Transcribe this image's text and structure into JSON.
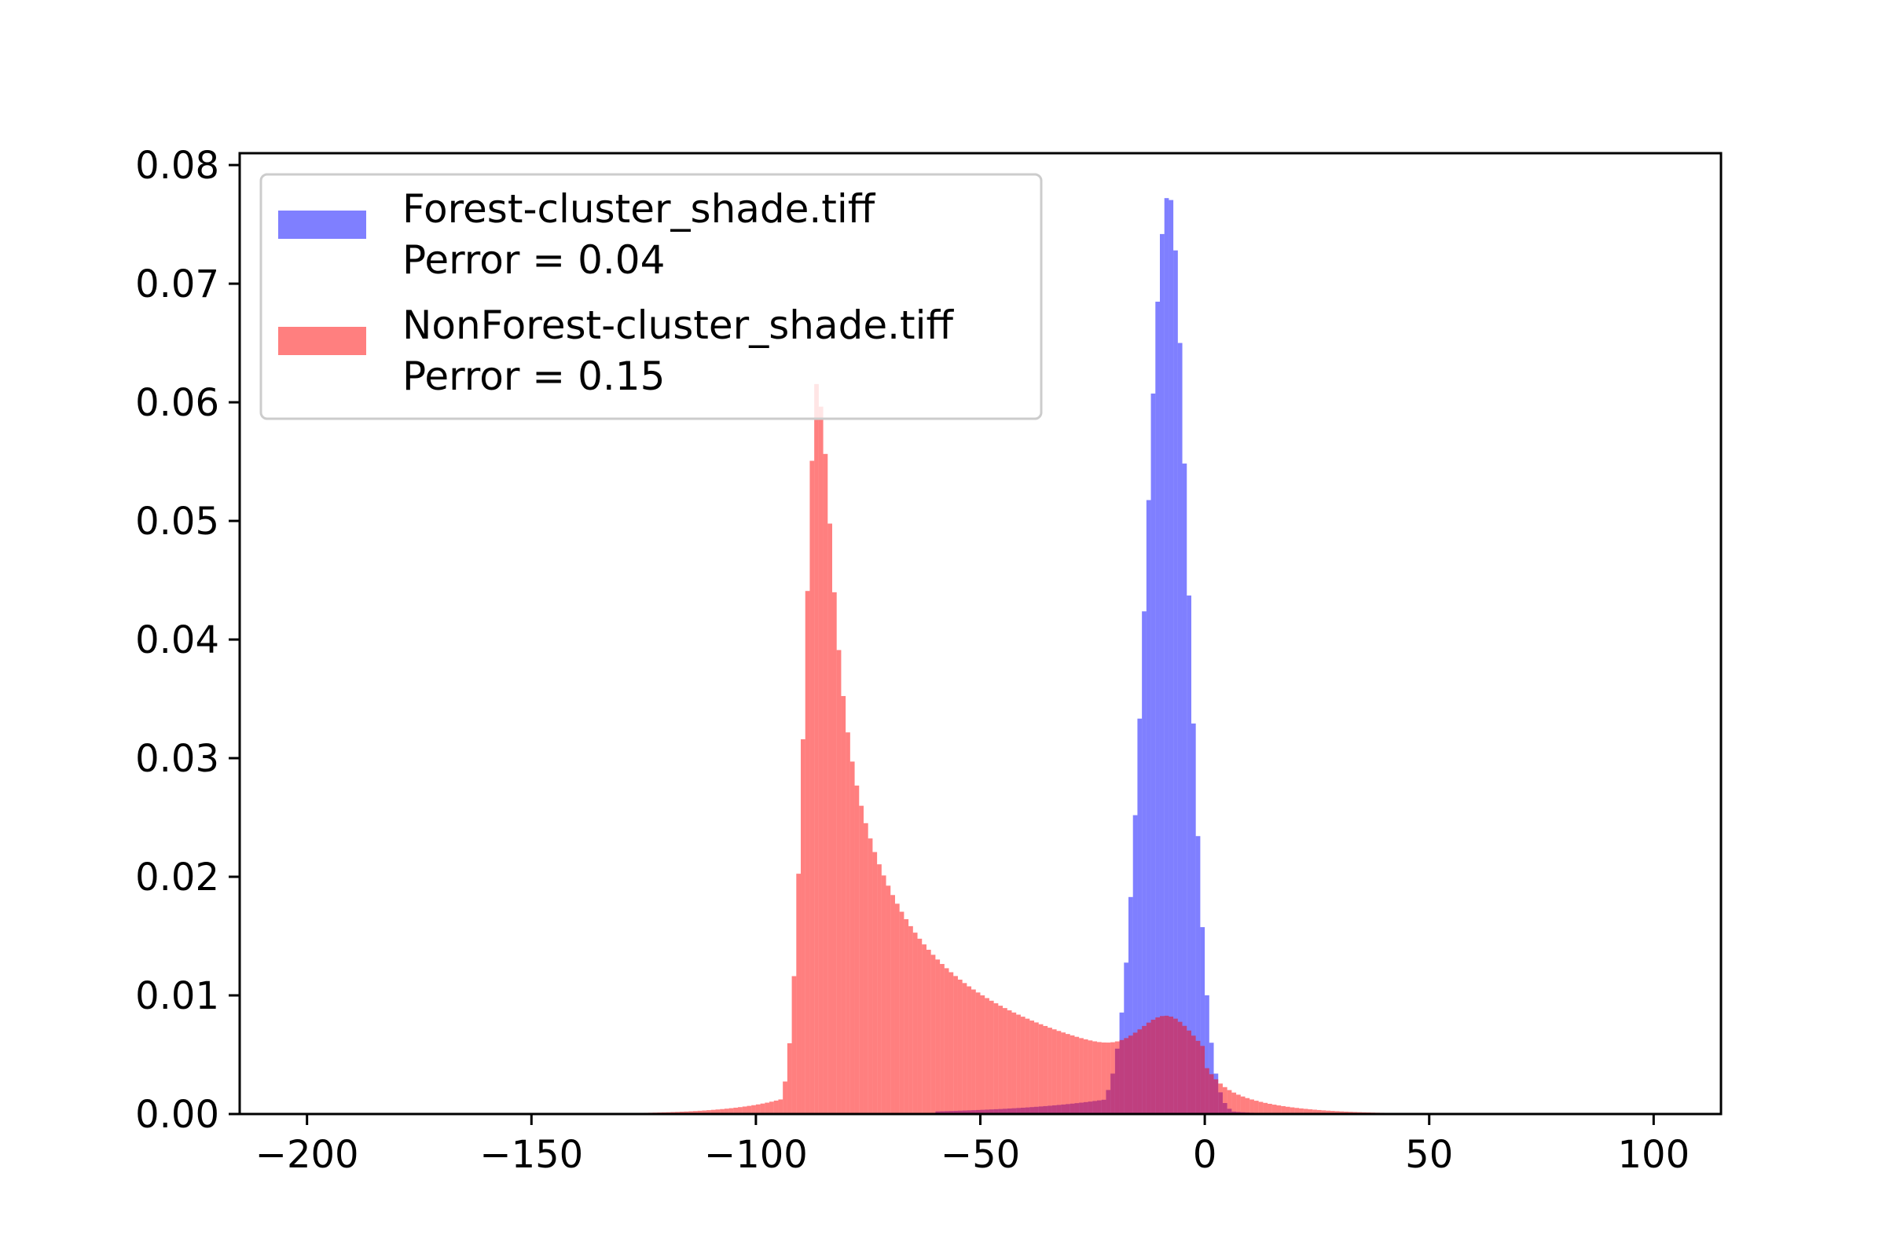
{
  "chart_data": {
    "type": "bar",
    "title": "",
    "xlabel": "",
    "ylabel": "",
    "xlim": [
      -215,
      115
    ],
    "ylim": [
      0,
      0.081
    ],
    "xticks": [
      -200,
      -150,
      -100,
      -50,
      0,
      50,
      100
    ],
    "xtick_labels": [
      "−200",
      "−150",
      "−100",
      "−50",
      "0",
      "50",
      "100"
    ],
    "yticks": [
      0,
      0.01,
      0.02,
      0.03,
      0.04,
      0.05,
      0.06,
      0.07,
      0.08
    ],
    "ytick_labels": [
      "0.00",
      "0.01",
      "0.02",
      "0.03",
      "0.04",
      "0.05",
      "0.06",
      "0.07",
      "0.08"
    ],
    "grid": false,
    "legend_position": "top-left",
    "bin_width": 1,
    "series": [
      {
        "name": "Forest-cluster_shade.tiff",
        "perror_label": "Perror = 0.04",
        "color": "#0000ff",
        "alpha": 0.5,
        "peak_x": -8,
        "peak_value": 0.0776,
        "left_width": 5.0,
        "right_width": 4.2,
        "left_tail_width": 22,
        "tail_fraction": 0.03,
        "x_min": -60,
        "x_max": 25
      },
      {
        "name": "NonForest-cluster_shade.tiff",
        "perror_label": "Perror = 0.15",
        "color": "#ff0000",
        "alpha": 0.5,
        "peak_x": -86,
        "peak_value": 0.0624,
        "left_width": 3.0,
        "left_tail_width": 12,
        "left_tail_fraction": 0.04,
        "right_components": [
          {
            "amplitude": 0.036,
            "width": 4.0
          },
          {
            "amplitude": 0.016,
            "width": 18.0
          },
          {
            "amplitude": 0.0082,
            "width": 70.0
          }
        ],
        "secondary_peak": {
          "x": -8,
          "value": 0.0083,
          "width": 6.0
        },
        "x_min": -135,
        "x_max": 45
      }
    ]
  }
}
